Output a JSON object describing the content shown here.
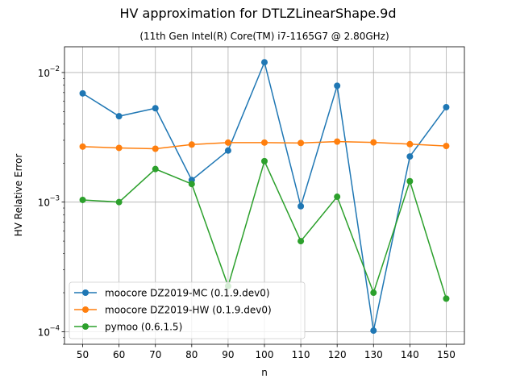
{
  "chart_data": {
    "type": "line",
    "title": "HV approximation for DTLZLinearShape.9d",
    "subtitle": "(11th Gen Intel(R) Core(TM) i7-1165G7 @ 2.80GHz)",
    "xlabel": "n",
    "ylabel": "HV Relative Error",
    "yscale": "log",
    "xlim": [
      45,
      155
    ],
    "ylim": [
      8e-05,
      0.0158
    ],
    "x": [
      50,
      60,
      70,
      80,
      90,
      100,
      110,
      120,
      130,
      140,
      150
    ],
    "x_ticks": [
      50,
      60,
      70,
      80,
      90,
      100,
      110,
      120,
      130,
      140,
      150
    ],
    "y_ticks": [
      {
        "value": 0.01,
        "base": "10",
        "exp": "−2"
      },
      {
        "value": 0.001,
        "base": "10",
        "exp": "−3"
      },
      {
        "value": 0.0001,
        "base": "10",
        "exp": "−4"
      }
    ],
    "grid": true,
    "legend_position": "lower-left",
    "series": [
      {
        "name": "moocore DZ2019-MC (0.1.9.dev0)",
        "color": "#1f77b4",
        "values": [
          0.0069,
          0.0046,
          0.0053,
          0.00148,
          0.0025,
          0.012,
          0.00093,
          0.0079,
          0.000102,
          0.00225,
          0.0054
        ]
      },
      {
        "name": "moocore DZ2019-HW (0.1.9.dev0)",
        "color": "#ff7f0e",
        "values": [
          0.00268,
          0.00262,
          0.00258,
          0.00278,
          0.00288,
          0.00288,
          0.00286,
          0.00293,
          0.00289,
          0.0028,
          0.00271
        ]
      },
      {
        "name": "pymoo (0.6.1.5)",
        "color": "#2ca02c",
        "values": [
          0.00104,
          0.001,
          0.0018,
          0.00138,
          0.000225,
          0.00207,
          0.0005,
          0.0011,
          0.0002,
          0.00145,
          0.00018
        ]
      }
    ]
  }
}
